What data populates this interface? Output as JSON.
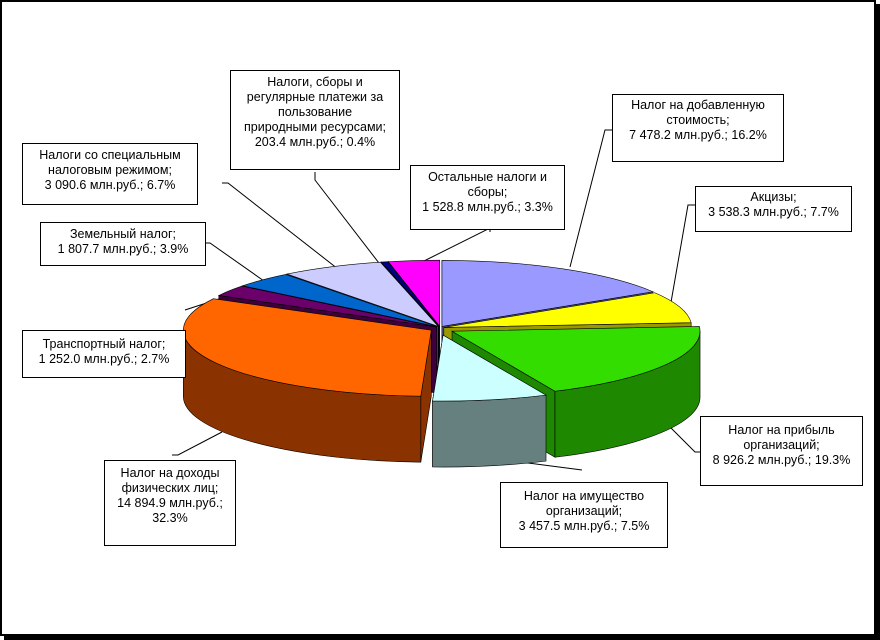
{
  "chart_data": {
    "type": "pie",
    "title": "",
    "style": "3d-exploded",
    "slices": [
      {
        "name": "Налог на добавленную стоимость",
        "value": 7478.2,
        "percent": 16.2,
        "color": "#9999FF",
        "side": "#5C5C99",
        "label": "Налог на добавленную стоимость; 7 478.2 млн.руб.; 16.2%"
      },
      {
        "name": "Акцизы",
        "value": 3538.3,
        "percent": 7.7,
        "color": "#FFFF00",
        "side": "#999900",
        "label": "Акцизы; 3 538.3 млн.руб.; 7.7%"
      },
      {
        "name": "Налог на прибыль организаций",
        "value": 8926.2,
        "percent": 19.3,
        "color": "#33DD00",
        "side": "#1E8800",
        "label": "Налог на прибыль организаций; 8 926.2 млн.руб.; 19.3%"
      },
      {
        "name": "Налог на имущество организаций",
        "value": 3457.5,
        "percent": 7.5,
        "color": "#CCFFFF",
        "side": "#668080",
        "label": "Налог на имущество организаций; 3 457.5 млн.руб.; 7.5%"
      },
      {
        "name": "Налог на доходы физических лиц",
        "value": 14894.9,
        "percent": 32.3,
        "color": "#FF6600",
        "side": "#8A3300",
        "label": "Налог на доходы физических лиц; 14 894.9 млн.руб.; 32.3%"
      },
      {
        "name": "Транспортный налог",
        "value": 1252.0,
        "percent": 2.7,
        "color": "#6B006B",
        "side": "#3D003D",
        "label": "Транспортный налог; 1 252.0 млн.руб.; 2.7%"
      },
      {
        "name": "Земельный налог",
        "value": 1807.7,
        "percent": 3.9,
        "color": "#0066CC",
        "side": "#003A75",
        "label": "Земельный налог; 1 807.7 млн.руб.; 3.9%"
      },
      {
        "name": "Налоги со специальным налоговым режимом",
        "value": 3090.6,
        "percent": 6.7,
        "color": "#CCCCFF",
        "side": "#77778F",
        "label": "Налоги со специальным налоговым режимом; 3 090.6 млн.руб.; 6.7%"
      },
      {
        "name": "Налоги, сборы и регулярные платежи за пользование природными ресурсами",
        "value": 203.4,
        "percent": 0.4,
        "color": "#000080",
        "side": "#000040",
        "label": "Налоги, сборы и регулярные платежи за пользование природными ресурсами; 203.4 млн.руб.; 0.4%"
      },
      {
        "name": "Остальные налоги и сборы",
        "value": 1528.8,
        "percent": 3.3,
        "color": "#FF00FF",
        "side": "#990099",
        "label": "Остальные налоги и сборы; 1 528.8 млн.руб.; 3.3%"
      }
    ]
  },
  "labels": {
    "vat": {
      "line1": "Налог на добавленную",
      "line2": "стоимость;",
      "line3": "7 478.2 млн.руб.; 16.2%"
    },
    "excise": {
      "line1": "Акцизы;",
      "line2": "3 538.3 млн.руб.; 7.7%"
    },
    "profit": {
      "line1": "Налог на прибыль",
      "line2": "организаций;",
      "line3": "8 926.2 млн.руб.; 19.3%"
    },
    "property": {
      "line1": "Налог на имущество",
      "line2": "организаций;",
      "line3": "3 457.5 млн.руб.; 7.5%"
    },
    "ndfl": {
      "line1": "Налог на доходы",
      "line2": "физических лиц;",
      "line3": "14 894.9 млн.руб.;",
      "line4": "32.3%"
    },
    "transport": {
      "line1": "Транспортный налог;",
      "line2": "1 252.0 млн.руб.; 2.7%"
    },
    "land": {
      "line1": "Земельный налог;",
      "line2": "1 807.7 млн.руб.; 3.9%"
    },
    "special": {
      "line1": "Налоги со специальным",
      "line2": "налоговым режимом;",
      "line3": "3 090.6 млн.руб.; 6.7%"
    },
    "natural": {
      "line1": "Налоги, сборы и",
      "line2": "регулярные платежи за",
      "line3": "пользование",
      "line4": "природными ресурсами;",
      "line5": "203.4 млн.руб.; 0.4%"
    },
    "other": {
      "line1": "Остальные налоги и",
      "line2": "сборы;",
      "line3": "1 528.8 млн.руб.; 3.3%"
    }
  }
}
